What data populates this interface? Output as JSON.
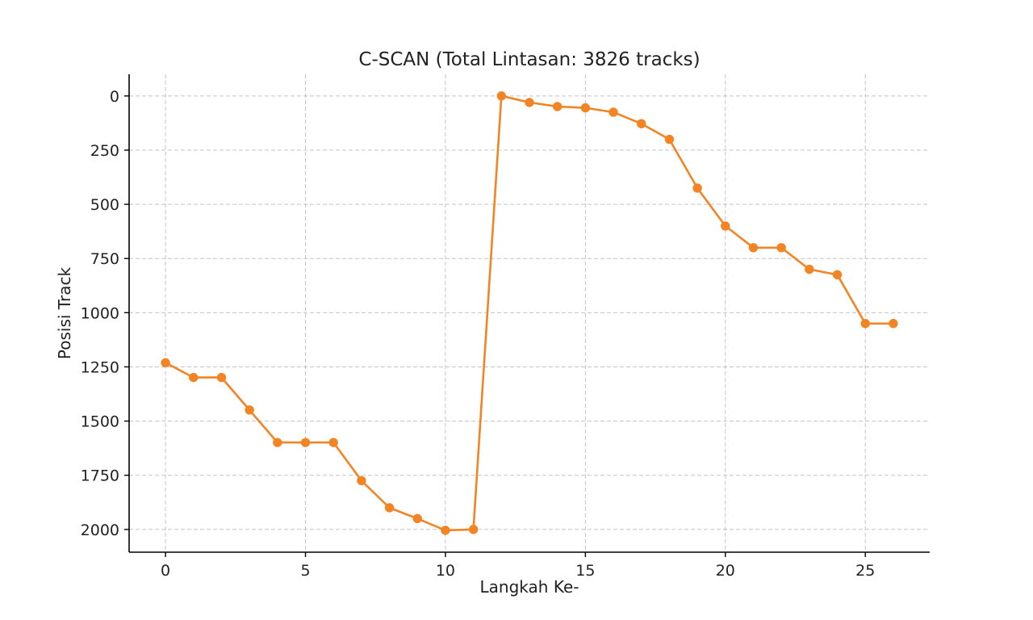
{
  "colors": {
    "series": "#f28424"
  },
  "chart_data": {
    "type": "line",
    "title": "C-SCAN (Total Lintasan: 3826 tracks)",
    "xlabel": "Langkah Ke-",
    "ylabel": "Posisi Track",
    "xlim": [
      -1.3,
      27.3
    ],
    "ylim": [
      2105,
      -100
    ],
    "y_inverted": true,
    "grid": true,
    "marker": "circle",
    "x_ticks": [
      0,
      5,
      10,
      15,
      20,
      25
    ],
    "y_ticks": [
      0,
      250,
      500,
      750,
      1000,
      1250,
      1500,
      1750,
      2000
    ],
    "series": [
      {
        "x": [
          0,
          1,
          2,
          3,
          4,
          5,
          6,
          7,
          8,
          9,
          10,
          11,
          12,
          13,
          14,
          15,
          16,
          17,
          18,
          19,
          20,
          21,
          22,
          23,
          24,
          25,
          26
        ],
        "values": [
          1231,
          1299,
          1299,
          1449,
          1599,
          1599,
          1599,
          1775,
          1900,
          1950,
          2004,
          2000,
          0,
          30,
          49,
          55,
          75,
          128,
          200,
          425,
          600,
          700,
          700,
          800,
          825,
          1050,
          1050
        ]
      }
    ]
  }
}
